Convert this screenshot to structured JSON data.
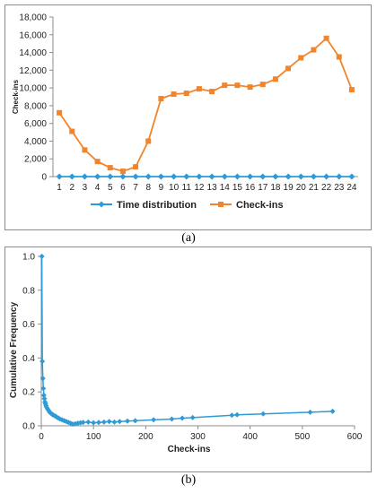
{
  "charts": {
    "a": {
      "caption": "(a)",
      "chart_data": {
        "type": "line",
        "ylabel": "Check-ins",
        "ylim": [
          0,
          18000
        ],
        "yticks": [
          0,
          2000,
          4000,
          6000,
          8000,
          10000,
          12000,
          14000,
          16000,
          18000
        ],
        "ytick_labels": [
          "0",
          "2,000",
          "4,000",
          "6,000",
          "8,000",
          "10,000",
          "12,000",
          "14,000",
          "16,000",
          "18,000"
        ],
        "categories": [
          "1",
          "2",
          "3",
          "4",
          "5",
          "6",
          "7",
          "8",
          "9",
          "10",
          "11",
          "12",
          "13",
          "14",
          "15",
          "16",
          "17",
          "18",
          "19",
          "20",
          "21",
          "22",
          "23",
          "24"
        ],
        "grid": false,
        "legend_position": "bottom",
        "series": [
          {
            "name": "Time distribution",
            "color": "#2e9bd6",
            "marker": "diamond",
            "values": [
              0,
              0,
              0,
              0,
              0,
              0,
              0,
              0,
              0,
              0,
              0,
              0,
              0,
              0,
              0,
              0,
              0,
              0,
              0,
              0,
              0,
              0,
              0,
              0
            ]
          },
          {
            "name": "Check-ins",
            "color": "#f0852d",
            "marker": "square",
            "values": [
              7200,
              5100,
              3000,
              1700,
              1000,
              600,
              1100,
              4000,
              8800,
              9300,
              9400,
              9900,
              9600,
              10300,
              10300,
              10100,
              10400,
              11000,
              12200,
              13400,
              14300,
              15600,
              13500,
              9800
            ]
          }
        ]
      }
    },
    "b": {
      "caption": "(b)",
      "chart_data": {
        "type": "line",
        "xlabel": "Check-ins",
        "ylabel": "Cumulative Frequency",
        "xlim": [
          0,
          600
        ],
        "ylim": [
          0,
          1.0
        ],
        "xticks": [
          0,
          100,
          200,
          300,
          400,
          500,
          600
        ],
        "xtick_labels": [
          "0",
          "100",
          "200",
          "300",
          "400",
          "500",
          "600"
        ],
        "yticks": [
          0,
          0.2,
          0.4,
          0.6,
          0.8,
          1.0
        ],
        "ytick_labels": [
          "0.0",
          "0.2",
          "0.4",
          "0.6",
          "0.8",
          "1.0"
        ],
        "grid": false,
        "series": [
          {
            "color": "#2e9bd6",
            "marker": "diamond",
            "x": [
              1,
              2,
              3,
              4,
              5,
              6,
              7,
              8,
              9,
              10,
              12,
              14,
              16,
              18,
              20,
              22,
              25,
              28,
              30,
              33,
              36,
              40,
              44,
              48,
              52,
              56,
              60,
              65,
              70,
              75,
              80,
              90,
              100,
              110,
              120,
              130,
              140,
              150,
              165,
              180,
              215,
              250,
              270,
              290,
              365,
              375,
              425,
              515,
              558
            ],
            "y": [
              1.0,
              0.38,
              0.28,
              0.22,
              0.18,
              0.16,
              0.14,
              0.13,
              0.12,
              0.11,
              0.1,
              0.09,
              0.08,
              0.075,
              0.07,
              0.065,
              0.06,
              0.055,
              0.05,
              0.045,
              0.04,
              0.035,
              0.03,
              0.025,
              0.02,
              0.015,
              0.01,
              0.012,
              0.015,
              0.018,
              0.02,
              0.022,
              0.018,
              0.02,
              0.022,
              0.025,
              0.022,
              0.025,
              0.028,
              0.03,
              0.035,
              0.04,
              0.045,
              0.048,
              0.062,
              0.065,
              0.07,
              0.08,
              0.085
            ]
          }
        ]
      }
    }
  }
}
